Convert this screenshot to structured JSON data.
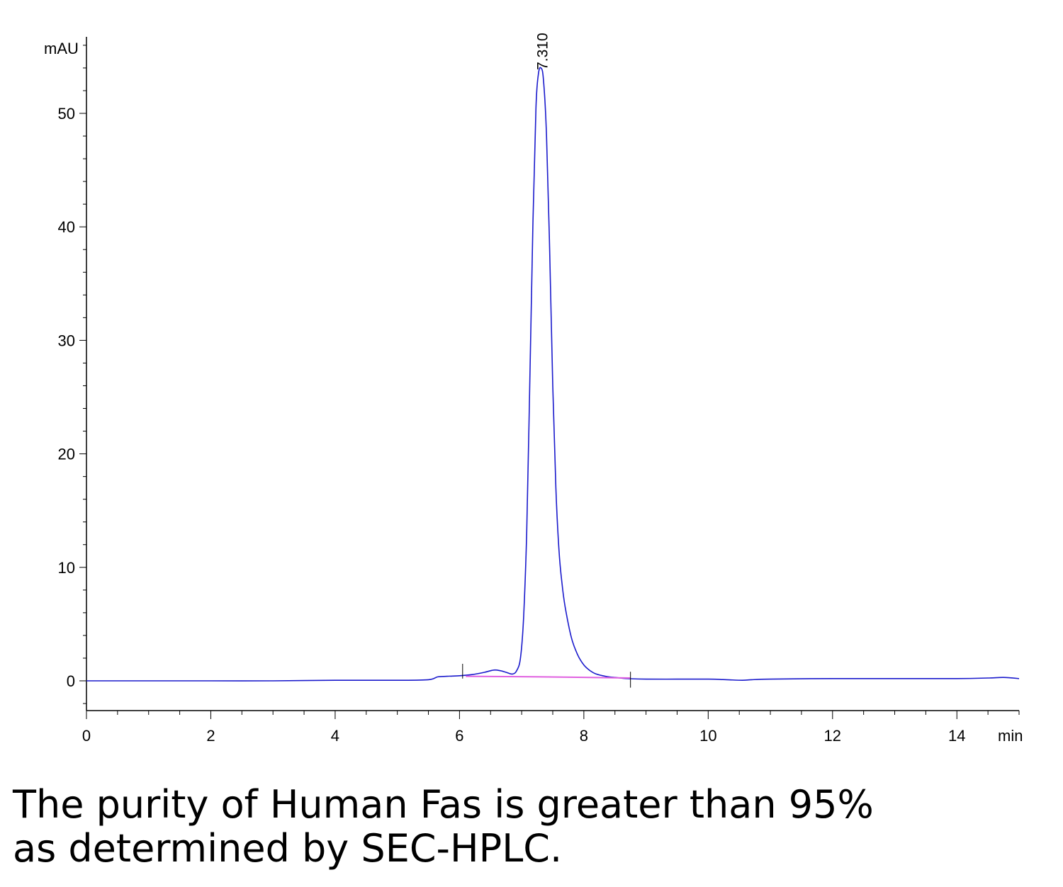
{
  "chart_data": {
    "type": "line",
    "title": "",
    "xlabel": "min",
    "ylabel": "mAU",
    "xlim": [
      0,
      15
    ],
    "ylim": [
      -2.5,
      56
    ],
    "x_major_ticks": [
      0,
      2,
      4,
      6,
      8,
      10,
      12,
      14
    ],
    "x_tick_labels": [
      "0",
      "2",
      "4",
      "6",
      "8",
      "10",
      "12",
      "14"
    ],
    "y_major_ticks": [
      0,
      10,
      20,
      30,
      40,
      50
    ],
    "y_tick_labels": [
      "0",
      "10",
      "20",
      "30",
      "40",
      "50"
    ],
    "grid": false,
    "legend": "none",
    "series": [
      {
        "color": "#1a1acc",
        "x": [
          0,
          1,
          2,
          3,
          4,
          5,
          5.5,
          5.65,
          5.8,
          6.0,
          6.2,
          6.4,
          6.55,
          6.65,
          6.75,
          6.85,
          6.92,
          6.98,
          7.03,
          7.08,
          7.13,
          7.18,
          7.23,
          7.27,
          7.31,
          7.35,
          7.4,
          7.45,
          7.5,
          7.55,
          7.6,
          7.65,
          7.7,
          7.8,
          7.9,
          8.0,
          8.1,
          8.2,
          8.35,
          8.5,
          8.7,
          9.0,
          9.5,
          10.0,
          10.3,
          10.55,
          10.7,
          11.0,
          12.0,
          13.0,
          14.0,
          14.5,
          14.75,
          15.0
        ],
        "y": [
          0.0,
          0.0,
          0.0,
          0.0,
          0.05,
          0.05,
          0.1,
          0.35,
          0.4,
          0.45,
          0.55,
          0.75,
          0.95,
          0.9,
          0.75,
          0.6,
          0.9,
          2.0,
          5.5,
          13.0,
          26.0,
          40.0,
          50.5,
          53.5,
          54.0,
          53.0,
          48.0,
          38.0,
          26.0,
          17.0,
          11.5,
          8.5,
          6.5,
          3.8,
          2.3,
          1.4,
          0.9,
          0.6,
          0.4,
          0.3,
          0.2,
          0.15,
          0.15,
          0.15,
          0.1,
          0.05,
          0.1,
          0.15,
          0.2,
          0.2,
          0.2,
          0.25,
          0.3,
          0.2
        ]
      },
      {
        "color": "#e060e0",
        "x": [
          6.1,
          7.3,
          8.75
        ],
        "y": [
          0.4,
          0.35,
          0.25
        ]
      }
    ],
    "annotations": [
      {
        "x": 7.31,
        "y": 54.0,
        "text": "7.310"
      }
    ]
  },
  "caption": {
    "line1": "The purity of Human Fas is greater than 95%",
    "line2": "as determined by SEC-HPLC."
  }
}
